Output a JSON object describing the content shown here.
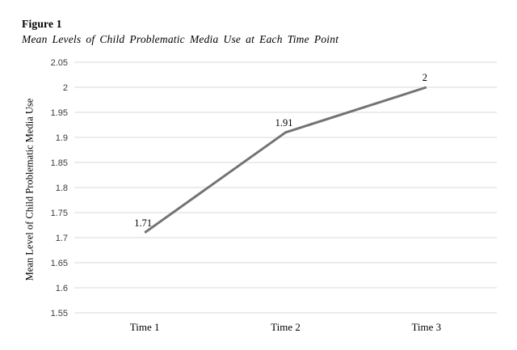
{
  "figure": {
    "label": "Figure 1"
  },
  "chart_data": {
    "type": "line",
    "title": "Mean Levels of Child Problematic Media Use at Each Time Point",
    "categories": [
      "Time 1",
      "Time 2",
      "Time 3"
    ],
    "values": [
      1.71,
      1.91,
      2
    ],
    "data_labels": [
      "1.71",
      "1.91",
      "2"
    ],
    "xlabel": "",
    "ylabel": "Mean Level of Child Problematic Media Use",
    "ylim": [
      1.55,
      2.05
    ],
    "ytick_step": 0.05,
    "ytick_labels": [
      "1.55",
      "1.6",
      "1.65",
      "1.7",
      "1.75",
      "1.8",
      "1.85",
      "1.9",
      "1.95",
      "2",
      "2.05"
    ],
    "grid": "horizontal",
    "legend": "none",
    "line_color": "#737373",
    "gridline_color": "#d9d9d9"
  }
}
